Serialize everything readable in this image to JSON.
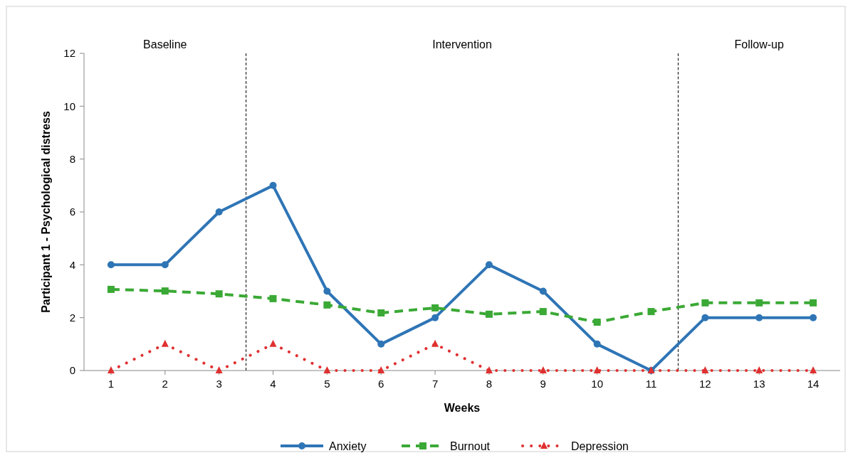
{
  "chart_data": {
    "type": "line",
    "xlabel": "Weeks",
    "ylabel": "Participant 1 - Psychological distress",
    "x": [
      1,
      2,
      3,
      4,
      5,
      6,
      7,
      8,
      9,
      10,
      11,
      12,
      13,
      14
    ],
    "xlim": [
      0.5,
      14.5
    ],
    "xticks": [
      1,
      2,
      3,
      4,
      5,
      6,
      7,
      8,
      9,
      10,
      11,
      12,
      13,
      14
    ],
    "ylim": [
      0,
      12
    ],
    "yticks": [
      0,
      2,
      4,
      6,
      8,
      10,
      12
    ],
    "series": [
      {
        "name": "Anxiety",
        "color": "#2e75b6",
        "marker": "circle",
        "line_style": "solid",
        "values": [
          4,
          4,
          6,
          7,
          3,
          1,
          2,
          4,
          3,
          1,
          0,
          2,
          2,
          2
        ]
      },
      {
        "name": "Burnout",
        "color": "#3aa935",
        "marker": "square",
        "line_style": "dashed",
        "values": [
          3.07,
          3.01,
          2.9,
          2.72,
          2.48,
          2.18,
          2.37,
          2.13,
          2.23,
          1.83,
          2.23,
          2.56,
          2.56,
          2.56
        ]
      },
      {
        "name": "Depression",
        "color": "#e03030",
        "marker": "triangle",
        "line_style": "dotted",
        "values": [
          0,
          1,
          0,
          1,
          0,
          0,
          1,
          0,
          0,
          0,
          0,
          0,
          0,
          0
        ]
      }
    ],
    "ref_lines": [
      {
        "axis": "x",
        "value": 3.5,
        "color": "#000000",
        "line_style": "dashed"
      },
      {
        "axis": "x",
        "value": 11.5,
        "color": "#000000",
        "line_style": "dashed"
      }
    ],
    "annotations": [
      "Baseline",
      "Intervention",
      "Follow-up"
    ],
    "grid": false,
    "legend": "bottom"
  }
}
